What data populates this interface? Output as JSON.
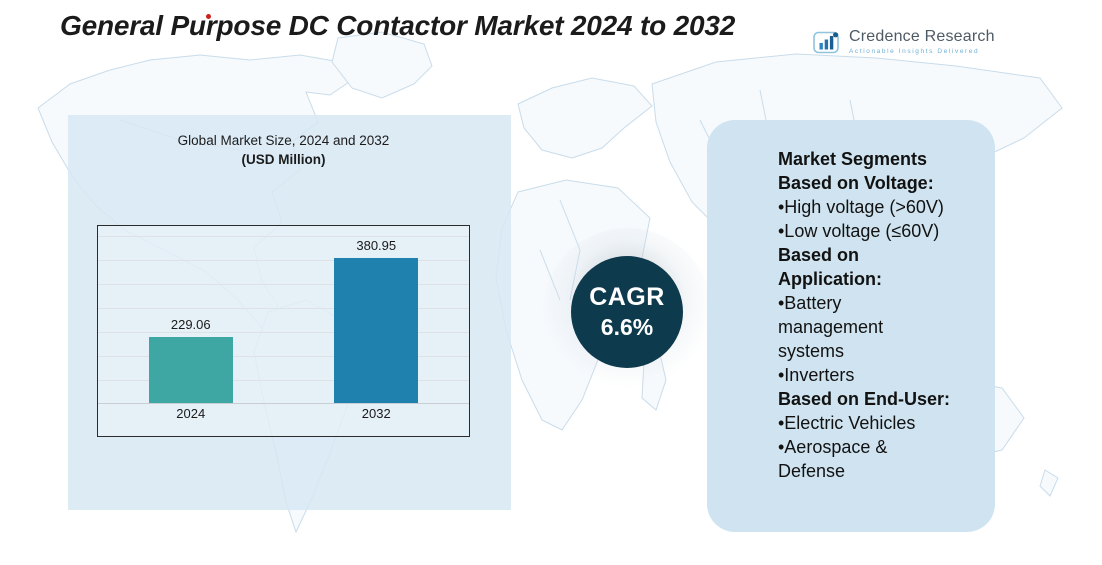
{
  "title": {
    "text": "General Purpose DC Contactor Market 2024 to 2032"
  },
  "logo": {
    "name": "Credence Research",
    "tagline": "Actionable Insights Delivered"
  },
  "chart_data": {
    "type": "bar",
    "title": "Global Market Size, 2024 and 2032",
    "subtitle": "(USD Million)",
    "unit": "USD Million",
    "categories": [
      "2024",
      "2032"
    ],
    "values": [
      229.06,
      380.95
    ],
    "value_labels": [
      "229.06",
      "380.95"
    ],
    "bar_colors": [
      "#3fa7a3",
      "#1f82ae"
    ],
    "ylim": [
      100,
      430
    ],
    "grid": true,
    "legend": "none"
  },
  "cagr": {
    "label": "CAGR",
    "value": "6.6%",
    "circle_color": "#0e3a4e"
  },
  "segments": {
    "lines": [
      {
        "text": "Market Segments",
        "style": "bold"
      },
      {
        "text": "Based on Voltage:",
        "style": "bold"
      },
      {
        "text": "•High voltage (>60V)",
        "style": "normal"
      },
      {
        "text": "•Low voltage (≤60V)",
        "style": "normal"
      },
      {
        "text": "Based on",
        "style": "bold"
      },
      {
        "text": "Application:",
        "style": "bold"
      },
      {
        "text": "•Battery",
        "style": "normal"
      },
      {
        "text": "management",
        "style": "normal"
      },
      {
        "text": "systems",
        "style": "normal"
      },
      {
        "text": "•Inverters",
        "style": "normal"
      },
      {
        "text": "Based on End-User:",
        "style": "bold"
      },
      {
        "text": "•Electric Vehicles",
        "style": "normal"
      },
      {
        "text": "•Aerospace &",
        "style": "normal"
      },
      {
        "text": "Defense",
        "style": "normal"
      }
    ]
  },
  "colors": {
    "chart_panel_bg": "rgba(215,231,243,0.85)",
    "segments_panel_bg": "#cfe4f0",
    "map_stroke": "#c9dcea",
    "title_color": "#1b1b1b"
  }
}
